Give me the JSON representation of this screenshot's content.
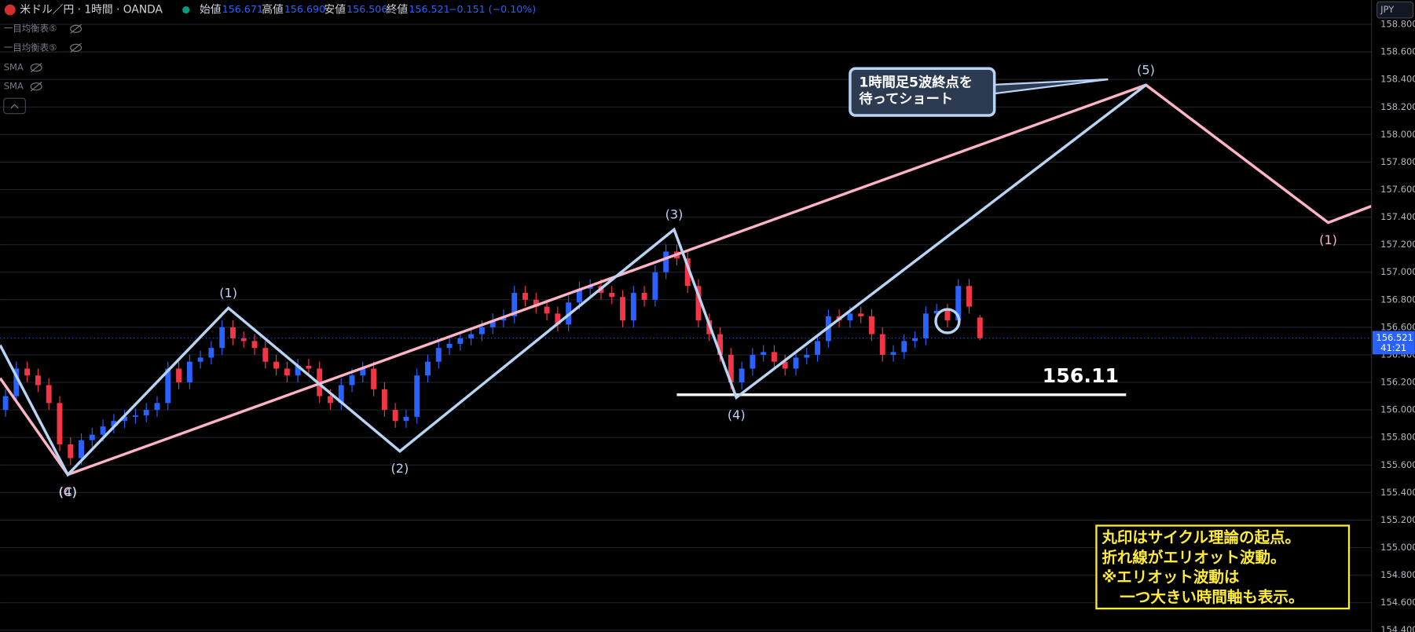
{
  "header": {
    "symbol": "米ドル／円 · 1時間 · OANDA",
    "open_label": "始値",
    "open": "156.671",
    "high_label": "高値",
    "high": "156.690",
    "low_label": "安値",
    "low": "156.506",
    "close_label": "終値",
    "close": "156.521",
    "change": "−0.151 (−0.10%)",
    "currency": "JPY"
  },
  "indicators": [
    "一目均衡表⑤",
    "一目均衡表⑤",
    "SMA",
    "SMA"
  ],
  "chart_data": {
    "type": "candlestick",
    "up_color": "#2962ff",
    "down_color": "#f23645",
    "xlim": [
      -0.5,
      126.17
    ],
    "ylim": [
      154.387,
      158.977
    ],
    "yticks": [
      {
        "value": 154.4,
        "label": "154.400"
      },
      {
        "value": 154.6,
        "label": "154.600"
      },
      {
        "value": 154.8,
        "label": "154.800"
      },
      {
        "value": 155.0,
        "label": "155.000"
      },
      {
        "value": 155.2,
        "label": "155.200"
      },
      {
        "value": 155.4,
        "label": "155.400"
      },
      {
        "value": 155.6,
        "label": "155.600"
      },
      {
        "value": 155.8,
        "label": "155.800"
      },
      {
        "value": 156.0,
        "label": "156.000"
      },
      {
        "value": 156.2,
        "label": "156.200"
      },
      {
        "value": 156.4,
        "label": "156.400"
      },
      {
        "value": 156.6,
        "label": "156.600"
      },
      {
        "value": 156.8,
        "label": "156.800"
      },
      {
        "value": 157.0,
        "label": "157.000"
      },
      {
        "value": 157.2,
        "label": "157.200"
      },
      {
        "value": 157.4,
        "label": "157.400"
      },
      {
        "value": 157.6,
        "label": "157.600"
      },
      {
        "value": 157.8,
        "label": "157.800"
      },
      {
        "value": 158.0,
        "label": "158.000"
      },
      {
        "value": 158.2,
        "label": "158.200"
      },
      {
        "value": 158.4,
        "label": "158.400"
      },
      {
        "value": 158.6,
        "label": "158.600"
      },
      {
        "value": 158.8,
        "label": "158.800"
      }
    ],
    "grid": true,
    "open": [
      156.0,
      156.1,
      156.3,
      156.25,
      156.18,
      156.05,
      155.75,
      155.65,
      155.78,
      155.82,
      155.88,
      155.92,
      155.95,
      155.96,
      156.0,
      156.05,
      156.3,
      156.2,
      156.35,
      156.38,
      156.45,
      156.6,
      156.52,
      156.5,
      156.45,
      156.35,
      156.3,
      156.25,
      156.32,
      156.3,
      156.1,
      156.05,
      156.18,
      156.25,
      156.3,
      156.15,
      156.0,
      155.92,
      155.95,
      156.25,
      156.35,
      156.45,
      156.48,
      156.52,
      156.55,
      156.6,
      156.65,
      156.68,
      156.85,
      156.8,
      156.75,
      156.7,
      156.62,
      156.78,
      156.88,
      156.9,
      156.85,
      156.82,
      156.65,
      156.85,
      156.8,
      157.0,
      157.15,
      157.1,
      156.9,
      156.65,
      156.55,
      156.4,
      156.2,
      156.3,
      156.4,
      156.42,
      156.35,
      156.3,
      156.38,
      156.4,
      156.5,
      156.68,
      156.65,
      156.7,
      156.68,
      156.55,
      156.4,
      156.42,
      156.5,
      156.52,
      156.7,
      156.72,
      156.65,
      156.9,
      156.671
    ],
    "high": [
      156.15,
      156.35,
      156.35,
      156.3,
      156.23,
      156.1,
      155.8,
      155.83,
      155.87,
      155.93,
      155.97,
      156.0,
      156.01,
      156.05,
      156.1,
      156.35,
      156.35,
      156.4,
      156.43,
      156.5,
      156.65,
      156.65,
      156.57,
      156.55,
      156.5,
      156.4,
      156.35,
      156.37,
      156.37,
      156.35,
      156.15,
      156.23,
      156.3,
      156.35,
      156.35,
      156.2,
      156.05,
      156.0,
      156.3,
      156.4,
      156.5,
      156.53,
      156.57,
      156.6,
      156.65,
      156.7,
      156.73,
      156.9,
      156.9,
      156.85,
      156.8,
      156.75,
      156.83,
      156.93,
      156.95,
      156.95,
      156.9,
      156.87,
      156.9,
      156.9,
      157.05,
      157.2,
      157.2,
      157.15,
      156.95,
      156.7,
      156.6,
      156.45,
      156.35,
      156.45,
      156.47,
      156.47,
      156.4,
      156.43,
      156.45,
      156.55,
      156.73,
      156.73,
      156.75,
      156.75,
      156.73,
      156.6,
      156.47,
      156.55,
      156.57,
      156.75,
      156.77,
      156.77,
      156.95,
      156.95,
      156.69
    ],
    "low": [
      155.95,
      156.05,
      156.2,
      156.13,
      156.0,
      155.7,
      155.6,
      155.6,
      155.73,
      155.77,
      155.83,
      155.87,
      155.9,
      155.91,
      155.95,
      156.0,
      156.15,
      156.15,
      156.3,
      156.33,
      156.4,
      156.47,
      156.45,
      156.4,
      156.3,
      156.25,
      156.2,
      156.2,
      156.25,
      156.05,
      156.0,
      156.0,
      156.13,
      156.2,
      156.1,
      155.95,
      155.87,
      155.87,
      155.9,
      156.2,
      156.3,
      156.4,
      156.43,
      156.47,
      156.5,
      156.55,
      156.6,
      156.63,
      156.75,
      156.7,
      156.65,
      156.57,
      156.57,
      156.73,
      156.83,
      156.8,
      156.77,
      156.6,
      156.6,
      156.75,
      156.75,
      156.95,
      157.05,
      156.85,
      156.6,
      156.5,
      156.35,
      156.15,
      156.15,
      156.25,
      156.35,
      156.3,
      156.25,
      156.25,
      156.33,
      156.35,
      156.45,
      156.6,
      156.6,
      156.63,
      156.5,
      156.35,
      156.35,
      156.37,
      156.45,
      156.47,
      156.65,
      156.6,
      156.6,
      156.7,
      156.506
    ],
    "close": [
      156.1,
      156.3,
      156.25,
      156.18,
      156.05,
      155.75,
      155.65,
      155.78,
      155.82,
      155.88,
      155.92,
      155.95,
      155.96,
      156.0,
      156.05,
      156.3,
      156.2,
      156.35,
      156.38,
      156.45,
      156.6,
      156.52,
      156.5,
      156.45,
      156.35,
      156.3,
      156.25,
      156.32,
      156.3,
      156.1,
      156.05,
      156.18,
      156.25,
      156.3,
      156.15,
      156.0,
      155.92,
      155.95,
      156.25,
      156.35,
      156.45,
      156.48,
      156.52,
      156.55,
      156.6,
      156.65,
      156.68,
      156.85,
      156.8,
      156.75,
      156.7,
      156.62,
      156.78,
      156.88,
      156.9,
      156.85,
      156.82,
      156.65,
      156.85,
      156.8,
      157.0,
      157.15,
      157.1,
      156.9,
      156.65,
      156.55,
      156.4,
      156.2,
      156.3,
      156.4,
      156.42,
      156.35,
      156.3,
      156.38,
      156.4,
      156.5,
      156.68,
      156.65,
      156.7,
      156.68,
      156.55,
      156.4,
      156.42,
      156.5,
      156.52,
      156.7,
      156.72,
      156.65,
      156.9,
      156.75,
      156.521
    ],
    "countdown": "41:21",
    "waves": [
      {
        "color": "#ffb3c6",
        "x": [
          -0.5,
          5.75,
          105.33,
          122.17,
          126.17
        ],
        "y": [
          156.23,
          155.53,
          158.36,
          157.36,
          157.48
        ],
        "labels": [
          null,
          "(C)",
          null,
          "(1)",
          null
        ]
      },
      {
        "color": "#b8d4f5",
        "x": [
          -0.5,
          5.75,
          20.58,
          36.42,
          61.75,
          67.5,
          105.33
        ],
        "y": [
          156.47,
          155.53,
          156.74,
          155.7,
          157.31,
          156.09,
          158.36
        ],
        "labels": [
          null,
          "(4)",
          "(1)",
          "(2)",
          "(3)",
          "(4)",
          "(5)"
        ]
      }
    ],
    "level": {
      "value": 156.11,
      "x": [
        62,
        103.5
      ]
    },
    "marker": {
      "x": 87,
      "y": 156.645
    },
    "callout": [
      "1時間足5波終点を",
      "待ってショート"
    ],
    "note": [
      "丸印はサイクル理論の起点。",
      "折れ線がエリオット波動。",
      "※エリオット波動は",
      "一つ大きい時間軸も表示。"
    ]
  }
}
